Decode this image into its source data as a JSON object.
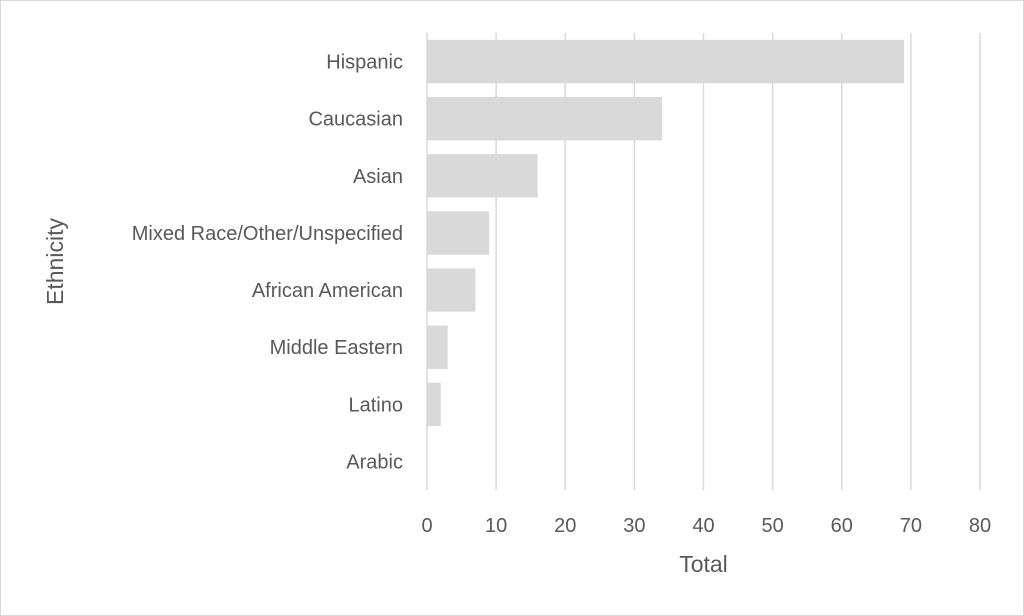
{
  "chart_data": {
    "type": "bar",
    "orientation": "horizontal",
    "categories": [
      "Hispanic",
      "Caucasian",
      "Asian",
      "Mixed Race/Other/Unspecified",
      "African American",
      "Middle Eastern",
      "Latino",
      "Arabic"
    ],
    "values": [
      69,
      34,
      16,
      9,
      7,
      3,
      2,
      0
    ],
    "xlabel": "Total",
    "ylabel": "Ethnicity",
    "xlim": [
      0,
      80
    ],
    "xticks": [
      "0",
      "10",
      "20",
      "30",
      "40",
      "50",
      "60",
      "70",
      "80"
    ],
    "grid": "vertical",
    "legend": "none",
    "colors": {
      "bar": "#d9d9d9",
      "grid": "#d9d9d9",
      "text": "#595959",
      "border": "#d9d9d9"
    }
  }
}
